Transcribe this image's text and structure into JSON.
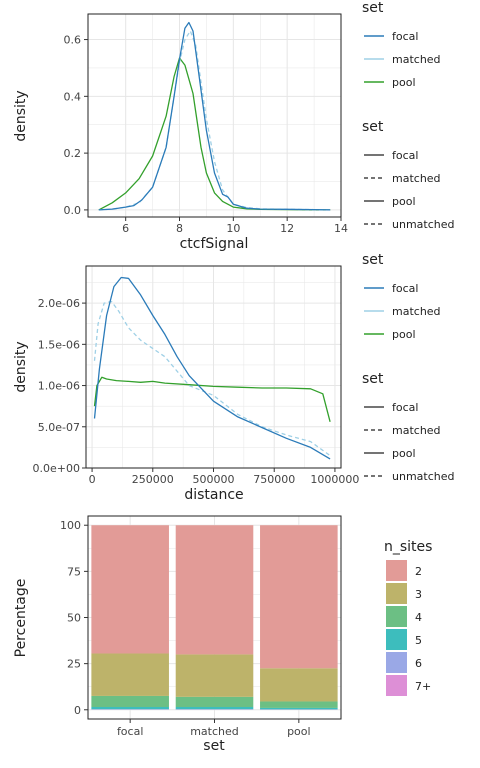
{
  "colors": {
    "focal": "#2b7bb9",
    "matched": "#9fd0e6",
    "pool": "#33a02c",
    "grid": "#e6e6e6",
    "frame": "#222222"
  },
  "chart_data": [
    {
      "type": "line",
      "xlabel": "ctcfSignal",
      "ylabel": "density",
      "xlim": [
        4.6,
        14
      ],
      "ylim": [
        -0.025,
        0.69
      ],
      "x_ticks": [
        6,
        8,
        10,
        12,
        14
      ],
      "y_ticks": [
        0.0,
        0.2,
        0.4,
        0.6
      ],
      "y_tick_labels": [
        "0.0",
        "0.2",
        "0.4",
        "0.6"
      ],
      "grid": true,
      "legend_placement": "right",
      "legend": {
        "color_title": "set",
        "color_entries": [
          "focal",
          "matched",
          "pool"
        ],
        "linetype_title": "set",
        "linetype_entries": [
          {
            "label": "focal",
            "dash": "solid"
          },
          {
            "label": "matched",
            "dash": "dashed"
          },
          {
            "label": "pool",
            "dash": "solid"
          },
          {
            "label": "unmatched",
            "dash": "dashed"
          }
        ]
      },
      "series": [
        {
          "name": "pool",
          "color": "#33a02c",
          "dash": "solid",
          "x": [
            5.0,
            5.5,
            6.0,
            6.5,
            7.0,
            7.5,
            7.8,
            8.0,
            8.2,
            8.5,
            8.8,
            9.0,
            9.3,
            9.6,
            10.0,
            10.5,
            11.0,
            12.0,
            13.0,
            13.6
          ],
          "y": [
            0.0,
            0.025,
            0.06,
            0.11,
            0.19,
            0.33,
            0.47,
            0.535,
            0.51,
            0.41,
            0.22,
            0.13,
            0.06,
            0.03,
            0.01,
            0.004,
            0.002,
            0.001,
            0.0,
            0.0
          ]
        },
        {
          "name": "matched",
          "color": "#9fd0e6",
          "dash": "dashed",
          "x": [
            5.0,
            5.5,
            6.0,
            6.5,
            7.0,
            7.5,
            7.8,
            8.0,
            8.2,
            8.4,
            8.6,
            8.8,
            9.0,
            9.3,
            9.6,
            10.0,
            10.5,
            11.0,
            12.0,
            13.0,
            13.6
          ],
          "y": [
            0.0,
            0.003,
            0.01,
            0.025,
            0.08,
            0.22,
            0.4,
            0.52,
            0.6,
            0.63,
            0.58,
            0.45,
            0.32,
            0.17,
            0.07,
            0.02,
            0.008,
            0.004,
            0.002,
            0.001,
            0.0
          ]
        },
        {
          "name": "focal",
          "color": "#2b7bb9",
          "dash": "solid",
          "x": [
            5.0,
            5.5,
            6.0,
            6.3,
            6.6,
            7.0,
            7.5,
            7.8,
            8.0,
            8.2,
            8.35,
            8.5,
            8.7,
            9.0,
            9.3,
            9.6,
            9.8,
            10.0,
            10.5,
            11.0,
            12.0,
            13.0,
            13.6
          ],
          "y": [
            0.0,
            0.003,
            0.01,
            0.015,
            0.035,
            0.08,
            0.22,
            0.4,
            0.53,
            0.64,
            0.66,
            0.63,
            0.49,
            0.28,
            0.13,
            0.055,
            0.045,
            0.02,
            0.006,
            0.003,
            0.002,
            0.001,
            0.0
          ]
        }
      ]
    },
    {
      "type": "line",
      "xlabel": "distance",
      "ylabel": "density",
      "xlim": [
        -25000,
        1025000
      ],
      "ylim": [
        0,
        2.45e-06
      ],
      "x_ticks": [
        0,
        250000,
        500000,
        750000,
        1000000
      ],
      "x_tick_labels": [
        "0",
        "250000",
        "500000",
        "750000",
        "1000000"
      ],
      "y_ticks": [
        0,
        5e-07,
        1e-06,
        1.5e-06,
        2e-06
      ],
      "y_tick_labels": [
        "0.0e+00",
        "5.0e-07",
        "1.0e-06",
        "1.5e-06",
        "2.0e-06"
      ],
      "grid": true,
      "legend_placement": "right",
      "legend": {
        "color_title": "set",
        "color_entries": [
          "focal",
          "matched",
          "pool"
        ],
        "linetype_title": "set",
        "linetype_entries": [
          {
            "label": "focal",
            "dash": "solid"
          },
          {
            "label": "matched",
            "dash": "dashed"
          },
          {
            "label": "pool",
            "dash": "solid"
          },
          {
            "label": "unmatched",
            "dash": "dashed"
          }
        ]
      },
      "series": [
        {
          "name": "pool",
          "color": "#33a02c",
          "dash": "solid",
          "x": [
            10000,
            20000,
            40000,
            60000,
            100000,
            150000,
            200000,
            250000,
            300000,
            400000,
            500000,
            600000,
            700000,
            800000,
            900000,
            950000,
            980000
          ],
          "y": [
            7.5e-07,
            1e-06,
            1.1e-06,
            1.08e-06,
            1.06e-06,
            1.05e-06,
            1.04e-06,
            1.05e-06,
            1.03e-06,
            1.01e-06,
            9.9e-07,
            9.8e-07,
            9.7e-07,
            9.7e-07,
            9.6e-07,
            9e-07,
            5.6e-07
          ]
        },
        {
          "name": "matched",
          "color": "#9fd0e6",
          "dash": "dashed",
          "x": [
            10000,
            25000,
            50000,
            80000,
            110000,
            150000,
            200000,
            300000,
            400000,
            500000,
            600000,
            700000,
            800000,
            900000,
            980000
          ],
          "y": [
            1.3e-06,
            1.75e-06,
            2e-06,
            2.02e-06,
            1.9e-06,
            1.7e-06,
            1.55e-06,
            1.35e-06,
            1e-06,
            8.8e-07,
            6.5e-07,
            5e-07,
            4e-07,
            3.2e-07,
            1.5e-07
          ]
        },
        {
          "name": "focal",
          "color": "#2b7bb9",
          "dash": "solid",
          "x": [
            10000,
            30000,
            60000,
            90000,
            120000,
            150000,
            200000,
            250000,
            300000,
            350000,
            400000,
            500000,
            600000,
            700000,
            800000,
            900000,
            980000
          ],
          "y": [
            6e-07,
            1.2e-06,
            1.85e-06,
            2.2e-06,
            2.31e-06,
            2.3e-06,
            2.1e-06,
            1.85e-06,
            1.62e-06,
            1.35e-06,
            1.12e-06,
            8.1e-07,
            6.2e-07,
            4.9e-07,
            3.6e-07,
            2.5e-07,
            1.1e-07
          ]
        }
      ]
    },
    {
      "type": "bar",
      "stacked": true,
      "xlabel": "set",
      "ylabel": "Percentage",
      "categories": [
        "focal",
        "matched",
        "pool"
      ],
      "ylim": [
        -5,
        105
      ],
      "y_ticks": [
        0,
        25,
        50,
        75,
        100
      ],
      "y_tick_labels": [
        "0",
        "25",
        "50",
        "75",
        "100"
      ],
      "grid": true,
      "legend_placement": "right",
      "legend": {
        "title": "n_sites",
        "entries": [
          "2",
          "3",
          "4",
          "5",
          "6",
          "7+"
        ]
      },
      "series": [
        {
          "name": "7+",
          "color": "#dd8fd6",
          "values": [
            0.1,
            0.1,
            0.1
          ]
        },
        {
          "name": "6",
          "color": "#9aa8e6",
          "values": [
            0.2,
            0.2,
            0.1
          ]
        },
        {
          "name": "5",
          "color": "#3dbdbd",
          "values": [
            1.2,
            1.2,
            0.8
          ]
        },
        {
          "name": "4",
          "color": "#6cbf84",
          "values": [
            6.0,
            5.5,
            3.5
          ]
        },
        {
          "name": "3",
          "color": "#bdb36a",
          "values": [
            23.0,
            23.0,
            18.0
          ]
        },
        {
          "name": "2",
          "color": "#e29b97",
          "values": [
            69.5,
            70.0,
            77.5
          ]
        }
      ]
    }
  ]
}
